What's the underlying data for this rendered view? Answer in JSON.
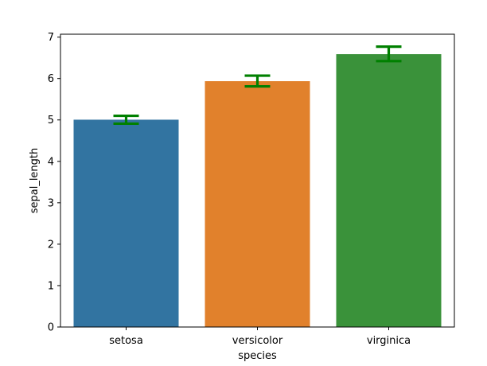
{
  "chart_data": {
    "type": "bar",
    "xlabel": "species",
    "ylabel": "sepal_length",
    "categories": [
      "setosa",
      "versicolor",
      "virginica"
    ],
    "values": [
      5.006,
      5.936,
      6.588
    ],
    "error_low": [
      4.91,
      5.81,
      6.42
    ],
    "error_high": [
      5.1,
      6.07,
      6.77
    ],
    "ylim": [
      0,
      7.07
    ],
    "yticks": [
      0,
      1,
      2,
      3,
      4,
      5,
      6,
      7
    ],
    "grid": false,
    "legend": "none",
    "bar_colors": [
      "#3274a1",
      "#e1812c",
      "#3a923a"
    ],
    "errorbar_color": "#008000"
  }
}
